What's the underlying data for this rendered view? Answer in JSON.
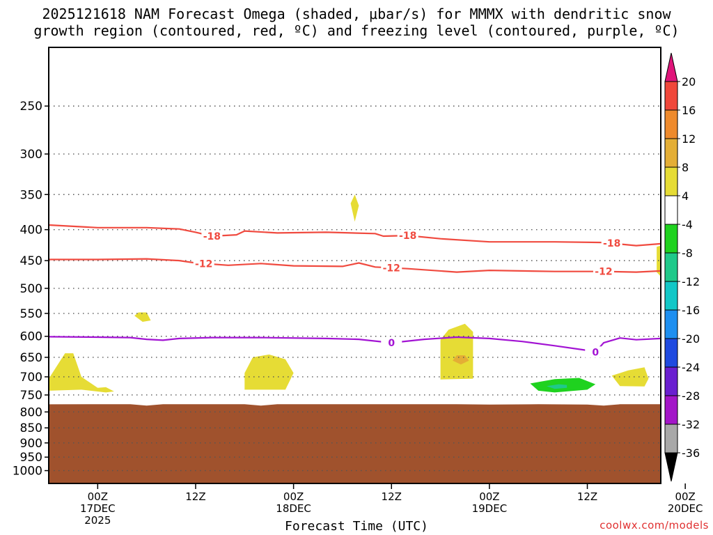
{
  "chart_data": {
    "type": "heatmap",
    "title_line1": "2025121618 NAM Forecast Omega (shaded, μbar/s) for MMMX with dendritic snow",
    "title_line2": "growth region (contoured, red, ºC) and freezing level (contoured, purple, ºC)",
    "xlabel": "Forecast Time (UTC)",
    "ylabel": "",
    "y_axis": {
      "scale": "log-pressure",
      "units_implied": "hPa",
      "range": [
        1050,
        200
      ],
      "ticks": [
        250,
        300,
        350,
        400,
        450,
        500,
        550,
        600,
        650,
        700,
        750,
        800,
        850,
        900,
        950,
        1000
      ]
    },
    "x_axis": {
      "range_hours": [
        -6,
        69
      ],
      "ticks": [
        {
          "hour": 0,
          "label": "00Z",
          "date": "17DEC",
          "year": "2025"
        },
        {
          "hour": 12,
          "label": "12Z",
          "date": "",
          "year": ""
        },
        {
          "hour": 24,
          "label": "00Z",
          "date": "18DEC",
          "year": ""
        },
        {
          "hour": 36,
          "label": "12Z",
          "date": "",
          "year": ""
        },
        {
          "hour": 48,
          "label": "00Z",
          "date": "19DEC",
          "year": ""
        },
        {
          "hour": 60,
          "label": "12Z",
          "date": "",
          "year": ""
        },
        {
          "hour": 72,
          "label": "00Z",
          "date": "20DEC",
          "year": ""
        }
      ]
    },
    "grid": true,
    "legend": "colorbar-right",
    "colorbar": {
      "labels": [
        "20",
        "16",
        "12",
        "8",
        "4",
        "-4",
        "-8",
        "-12",
        "-16",
        "-20",
        "-24",
        "-28",
        "-32",
        "-36"
      ],
      "bins": [
        {
          "lo": 20,
          "hi": null,
          "color": "#e0157a"
        },
        {
          "lo": 16,
          "hi": 20,
          "color": "#f0473a"
        },
        {
          "lo": 12,
          "hi": 16,
          "color": "#ee8a2c"
        },
        {
          "lo": 8,
          "hi": 12,
          "color": "#e4ae35"
        },
        {
          "lo": 4,
          "hi": 8,
          "color": "#e6dc35"
        },
        {
          "lo": -4,
          "hi": 4,
          "color": "#ffffff"
        },
        {
          "lo": -8,
          "hi": -4,
          "color": "#1fd21f"
        },
        {
          "lo": -12,
          "hi": -8,
          "color": "#1fc98a"
        },
        {
          "lo": -16,
          "hi": -12,
          "color": "#12c7c7"
        },
        {
          "lo": -20,
          "hi": -16,
          "color": "#1e8ff0"
        },
        {
          "lo": -24,
          "hi": -20,
          "color": "#1f4ae0"
        },
        {
          "lo": -28,
          "hi": -24,
          "color": "#6a1fd0"
        },
        {
          "lo": -32,
          "hi": -28,
          "color": "#a316c8"
        },
        {
          "lo": -36,
          "hi": -32,
          "color": "#a8a8a8"
        },
        {
          "lo": null,
          "hi": -36,
          "color": "#000000"
        }
      ]
    },
    "colors": {
      "terrain": "#a0522d",
      "dgz_contour": "#f04a3f",
      "freezing_contour": "#a213d3",
      "grid": "#555555"
    },
    "terrain": {
      "surface_pressure_hpa": [
        [
          -6,
          777
        ],
        [
          0,
          777
        ],
        [
          4,
          777
        ],
        [
          6,
          781
        ],
        [
          8,
          777
        ],
        [
          18,
          777
        ],
        [
          20,
          781
        ],
        [
          22,
          777
        ],
        [
          44,
          777
        ],
        [
          48,
          778
        ],
        [
          54,
          777
        ],
        [
          60,
          778
        ],
        [
          62,
          781
        ],
        [
          64,
          777
        ],
        [
          69,
          777
        ]
      ]
    },
    "contours": [
      {
        "label": "-18",
        "kind": "dgz",
        "label_at_hours": [
          14,
          38,
          63
        ],
        "points": [
          [
            -6,
            393
          ],
          [
            0,
            397
          ],
          [
            6,
            397
          ],
          [
            10,
            399
          ],
          [
            12,
            404
          ],
          [
            14,
            410
          ],
          [
            17,
            408
          ],
          [
            18,
            402
          ],
          [
            22,
            405
          ],
          [
            28,
            404
          ],
          [
            34,
            406
          ],
          [
            35,
            410
          ],
          [
            38,
            409
          ],
          [
            42,
            414
          ],
          [
            48,
            419
          ],
          [
            56,
            419
          ],
          [
            62,
            420
          ],
          [
            66,
            425
          ],
          [
            69,
            422
          ]
        ]
      },
      {
        "label": "-12",
        "kind": "dgz",
        "label_at_hours": [
          13,
          36,
          62
        ],
        "points": [
          [
            -6,
            448
          ],
          [
            0,
            448
          ],
          [
            6,
            447
          ],
          [
            10,
            450
          ],
          [
            12,
            454
          ],
          [
            16,
            458
          ],
          [
            20,
            455
          ],
          [
            24,
            459
          ],
          [
            30,
            460
          ],
          [
            32,
            454
          ],
          [
            34,
            461
          ],
          [
            38,
            464
          ],
          [
            44,
            470
          ],
          [
            48,
            467
          ],
          [
            56,
            469
          ],
          [
            62,
            469
          ],
          [
            66,
            470
          ],
          [
            69,
            468
          ]
        ]
      },
      {
        "label": "0",
        "kind": "freezing",
        "label_at_hours": [
          36,
          61
        ],
        "points": [
          [
            -6,
            601
          ],
          [
            0,
            602
          ],
          [
            4,
            603
          ],
          [
            6,
            607
          ],
          [
            8,
            609
          ],
          [
            10,
            605
          ],
          [
            14,
            603
          ],
          [
            20,
            603
          ],
          [
            28,
            605
          ],
          [
            32,
            607
          ],
          [
            36,
            615
          ],
          [
            40,
            607
          ],
          [
            44,
            602
          ],
          [
            48,
            605
          ],
          [
            52,
            612
          ],
          [
            56,
            622
          ],
          [
            60,
            633
          ],
          [
            61,
            637
          ],
          [
            62,
            615
          ],
          [
            64,
            604
          ],
          [
            66,
            608
          ],
          [
            69,
            605
          ]
        ]
      }
    ],
    "shaded_regions": [
      {
        "value_bin": "4 to 8",
        "points": [
          [
            -6,
            705
          ],
          [
            -4,
            640
          ],
          [
            -3,
            640
          ],
          [
            -2,
            700
          ],
          [
            0,
            730
          ],
          [
            1,
            728
          ],
          [
            2,
            740
          ],
          [
            1,
            743
          ],
          [
            -2,
            735
          ],
          [
            -6,
            738
          ]
        ]
      },
      {
        "value_bin": "4 to 8",
        "points": [
          [
            5,
            548
          ],
          [
            6,
            548
          ],
          [
            6.5,
            565
          ],
          [
            5.5,
            568
          ],
          [
            4.5,
            555
          ]
        ]
      },
      {
        "value_bin": "4 to 8",
        "points": [
          [
            18,
            690
          ],
          [
            19,
            650
          ],
          [
            21,
            643
          ],
          [
            23,
            655
          ],
          [
            24,
            690
          ],
          [
            23,
            735
          ],
          [
            18,
            735
          ]
        ]
      },
      {
        "value_bin": "4 to 8",
        "points": [
          [
            31,
            362
          ],
          [
            31.5,
            350
          ],
          [
            32,
            365
          ],
          [
            31.5,
            388
          ]
        ]
      },
      {
        "value_bin": "4 to 8",
        "points": [
          [
            42,
            608
          ],
          [
            43,
            585
          ],
          [
            45,
            572
          ],
          [
            46,
            590
          ],
          [
            46,
            705
          ],
          [
            42,
            707
          ]
        ]
      },
      {
        "value_bin": "8 to 12",
        "points": [
          [
            44,
            645
          ],
          [
            45,
            645
          ],
          [
            45.5,
            658
          ],
          [
            44.5,
            668
          ],
          [
            43.5,
            658
          ]
        ]
      },
      {
        "value_bin": "-4 to -8",
        "points": [
          [
            53,
            718
          ],
          [
            56,
            706
          ],
          [
            59,
            703
          ],
          [
            61,
            720
          ],
          [
            60,
            735
          ],
          [
            56,
            743
          ],
          [
            54,
            738
          ]
        ]
      },
      {
        "value_bin": "-8 to -12",
        "points": [
          [
            55,
            725
          ],
          [
            56.5,
            720
          ],
          [
            57.5,
            722
          ],
          [
            57.5,
            730
          ],
          [
            56,
            733
          ]
        ]
      },
      {
        "value_bin": "4 to 8",
        "points": [
          [
            63,
            697
          ],
          [
            65,
            683
          ],
          [
            67,
            675
          ],
          [
            67.5,
            705
          ],
          [
            67,
            726
          ],
          [
            64,
            725
          ]
        ]
      },
      {
        "value_bin": "4 to 8",
        "points": [
          [
            68.5,
            427
          ],
          [
            69,
            425
          ],
          [
            69,
            478
          ],
          [
            68.5,
            470
          ]
        ]
      }
    ]
  },
  "watermark": "coolwx.com/models"
}
